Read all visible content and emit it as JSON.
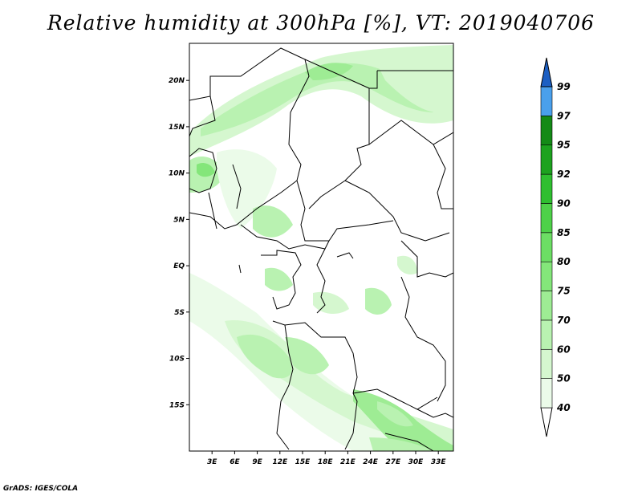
{
  "title": "Relative humidity at 300hPa [%], VT: 2019040706",
  "credit": "GrADS: IGES/COLA",
  "map": {
    "lon_range": [
      0,
      35
    ],
    "lat_range": [
      -20,
      24
    ],
    "lat_ticks": [
      {
        "value": 20,
        "label": "20N"
      },
      {
        "value": 15,
        "label": "15N"
      },
      {
        "value": 10,
        "label": "10N"
      },
      {
        "value": 5,
        "label": "5N"
      },
      {
        "value": 0,
        "label": "EQ"
      },
      {
        "value": -5,
        "label": "5S"
      },
      {
        "value": -10,
        "label": "10S"
      },
      {
        "value": -15,
        "label": "15S"
      }
    ],
    "lon_ticks": [
      {
        "value": 3,
        "label": "3E"
      },
      {
        "value": 6,
        "label": "6E"
      },
      {
        "value": 9,
        "label": "9E"
      },
      {
        "value": 12,
        "label": "12E"
      },
      {
        "value": 15,
        "label": "15E"
      },
      {
        "value": 18,
        "label": "18E"
      },
      {
        "value": 21,
        "label": "21E"
      },
      {
        "value": 24,
        "label": "24E"
      },
      {
        "value": 27,
        "label": "27E"
      },
      {
        "value": 30,
        "label": "30E"
      },
      {
        "value": 33,
        "label": "33E"
      }
    ]
  },
  "colorbar": {
    "levels": [
      {
        "label": "40",
        "color": "#ebfbe9"
      },
      {
        "label": "50",
        "color": "#d5f7cf"
      },
      {
        "label": "60",
        "color": "#b9f2b1"
      },
      {
        "label": "70",
        "color": "#9eec94"
      },
      {
        "label": "75",
        "color": "#84e67a"
      },
      {
        "label": "80",
        "color": "#6cde64"
      },
      {
        "label": "85",
        "color": "#4ed149"
      },
      {
        "label": "90",
        "color": "#2fbf30"
      },
      {
        "label": "92",
        "color": "#1da21f"
      },
      {
        "label": "95",
        "color": "#148a17"
      },
      {
        "label": "97",
        "color": "#4aa0ec"
      },
      {
        "label": "99",
        "color": "#2073d8"
      }
    ],
    "bottom_color": "#ffffff",
    "top_color": "#1c5fc3"
  }
}
